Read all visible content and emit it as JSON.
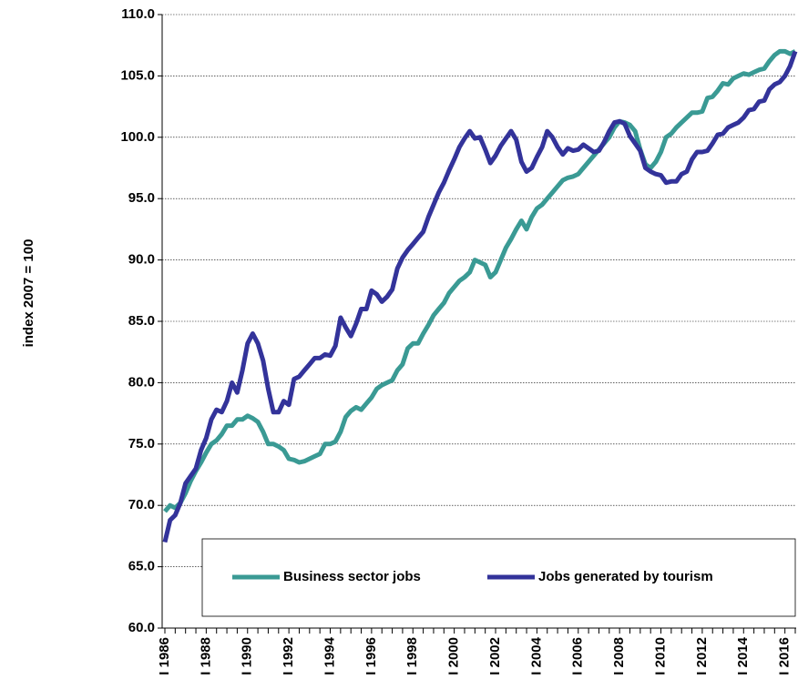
{
  "chart_data": {
    "type": "line",
    "y_label": "index 2007 = 100",
    "categories": [
      "I 1986",
      null,
      null,
      null,
      null,
      null,
      null,
      null,
      "I 1988",
      null,
      null,
      null,
      null,
      null,
      null,
      null,
      "I 1990",
      null,
      null,
      null,
      null,
      null,
      null,
      null,
      "I 1992",
      null,
      null,
      null,
      null,
      null,
      null,
      null,
      "I 1994",
      null,
      null,
      null,
      null,
      null,
      null,
      null,
      "I 1996",
      null,
      null,
      null,
      null,
      null,
      null,
      null,
      "I 1998",
      null,
      null,
      null,
      null,
      null,
      null,
      null,
      "I 2000",
      null,
      null,
      null,
      null,
      null,
      null,
      null,
      "I 2002",
      null,
      null,
      null,
      null,
      null,
      null,
      null,
      "I 2004",
      null,
      null,
      null,
      null,
      null,
      null,
      null,
      "I 2006",
      null,
      null,
      null,
      null,
      null,
      null,
      null,
      "I 2008",
      null,
      null,
      null,
      null,
      null,
      null,
      null,
      "I 2010",
      null,
      null,
      null,
      null,
      null,
      null,
      null,
      "I 2012",
      null,
      null,
      null,
      null,
      null,
      null,
      null,
      "I 2014",
      null,
      null,
      null,
      null,
      null,
      null,
      null,
      "I 2016",
      null,
      null
    ],
    "series": [
      {
        "name": "Business sector jobs",
        "color": "#3a9a94",
        "values": [
          69.5,
          70,
          69.8,
          70.2,
          71,
          72,
          72.8,
          73.5,
          74.3,
          75,
          75.3,
          75.8,
          76.5,
          76.5,
          77,
          77,
          77.3,
          77.1,
          76.8,
          76,
          75,
          75,
          74.8,
          74.5,
          73.8,
          73.7,
          73.5,
          73.6,
          73.8,
          74,
          74.2,
          75,
          75,
          75.2,
          76,
          77.2,
          77.7,
          78,
          77.8,
          78.3,
          78.8,
          79.5,
          79.8,
          80,
          80.2,
          81,
          81.5,
          82.8,
          83.2,
          83.2,
          84,
          84.7,
          85.5,
          86,
          86.5,
          87.3,
          87.8,
          88.3,
          88.6,
          89,
          90,
          89.8,
          89.6,
          88.6,
          89,
          90,
          91,
          91.7,
          92.5,
          93.2,
          92.5,
          93.5,
          94.2,
          94.5,
          95,
          95.5,
          96,
          96.5,
          96.7,
          96.8,
          97,
          97.5,
          98,
          98.5,
          99,
          99.5,
          100,
          100.8,
          101.3,
          101.2,
          101,
          100.5,
          99,
          97.8,
          97.5,
          98,
          98.8,
          100,
          100.3,
          100.8,
          101.2,
          101.6,
          102,
          102,
          102.1,
          103.2,
          103.3,
          103.8,
          104.4,
          104.3,
          104.8,
          105,
          105.2,
          105.1,
          105.3,
          105.5,
          105.6,
          106.2,
          106.7,
          107,
          107,
          106.8,
          107
        ]
      },
      {
        "name": "Jobs generated by tourism",
        "color": "#33339a",
        "values": [
          67,
          68.8,
          69.2,
          70.2,
          71.8,
          72.4,
          73,
          74.5,
          75.5,
          77,
          77.8,
          77.6,
          78.5,
          80,
          79.2,
          81,
          83.2,
          84,
          83.2,
          81.8,
          79.5,
          77.6,
          77.6,
          78.5,
          78.2,
          80.3,
          80.5,
          81,
          81.5,
          82,
          82,
          82.3,
          82.2,
          83,
          85.3,
          84.5,
          83.8,
          84.8,
          86,
          86,
          87.5,
          87.2,
          86.6,
          87,
          87.6,
          89.3,
          90.2,
          90.8,
          91.3,
          91.8,
          92.3,
          93.5,
          94.5,
          95.5,
          96.3,
          97.3,
          98.2,
          99.2,
          99.9,
          100.5,
          99.9,
          100,
          99,
          97.9,
          98.5,
          99.3,
          99.9,
          100.5,
          99.8,
          98,
          97.2,
          97.5,
          98.4,
          99.2,
          100.5,
          100,
          99.2,
          98.6,
          99.1,
          98.9,
          99,
          99.4,
          99.1,
          98.8,
          98.9,
          99.6,
          100.5,
          101.2,
          101.3,
          101.1,
          100.1,
          99.5,
          98.9,
          97.5,
          97.2,
          97,
          96.9,
          96.3,
          96.4,
          96.4,
          97,
          97.2,
          98.2,
          98.8,
          98.8,
          98.9,
          99.5,
          100.2,
          100.3,
          100.8,
          101,
          101.2,
          101.6,
          102.2,
          102.3,
          102.9,
          103,
          103.9,
          104.3,
          104.5,
          105,
          105.8,
          107
        ]
      }
    ],
    "ylim": [
      60,
      110
    ],
    "yticks": [
      {
        "value": 60,
        "label": "60.0"
      },
      {
        "value": 65,
        "label": "65.0"
      },
      {
        "value": 70,
        "label": "70.0"
      },
      {
        "value": 75,
        "label": "75.0"
      },
      {
        "value": 80,
        "label": "80.0"
      },
      {
        "value": 85,
        "label": "85.0"
      },
      {
        "value": 90,
        "label": "90.0"
      },
      {
        "value": 95,
        "label": "95.0"
      },
      {
        "value": 100,
        "label": "100.0"
      },
      {
        "value": 105,
        "label": "105.0"
      },
      {
        "value": 110,
        "label": "110.0"
      }
    ],
    "grid": true,
    "legend": "bottom"
  }
}
